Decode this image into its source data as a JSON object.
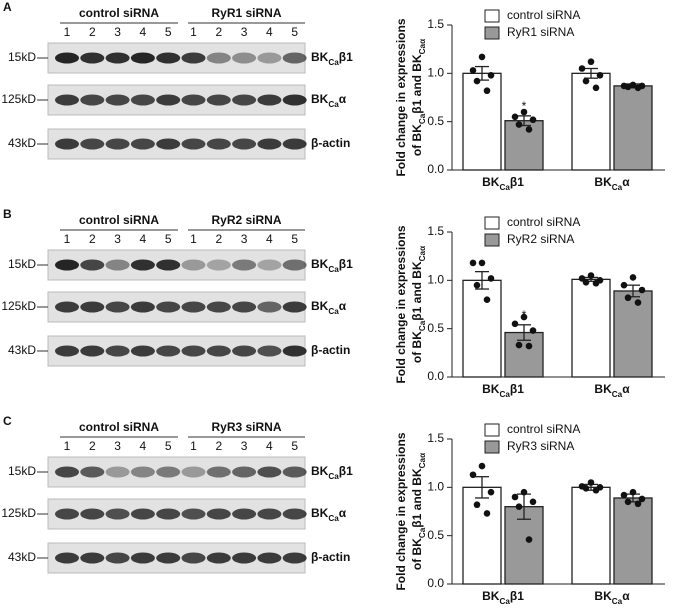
{
  "panels": [
    {
      "label": "A",
      "groups": [
        "control siRNA",
        "RyR1 siRNA"
      ],
      "lanes": [
        "1",
        "2",
        "3",
        "4",
        "5",
        "1",
        "2",
        "3",
        "4",
        "5"
      ],
      "markers": [
        "15kD",
        "125kD",
        "43kD"
      ],
      "proteins": [
        [
          {
            "text": "BK"
          },
          {
            "text": "Ca",
            "sub": true
          },
          {
            "text": "β1"
          }
        ],
        [
          {
            "text": "BK"
          },
          {
            "text": "Ca",
            "sub": true
          },
          {
            "text": "α"
          }
        ],
        [
          {
            "text": "β-actin"
          }
        ]
      ]
    },
    {
      "label": "B",
      "groups": [
        "control siRNA",
        "RyR2 siRNA"
      ],
      "lanes": [
        "1",
        "2",
        "3",
        "4",
        "5",
        "1",
        "2",
        "3",
        "4",
        "5"
      ],
      "markers": [
        "15kD",
        "125kD",
        "43kD"
      ],
      "proteins": [
        [
          {
            "text": "BK"
          },
          {
            "text": "Ca",
            "sub": true
          },
          {
            "text": "β1"
          }
        ],
        [
          {
            "text": "BK"
          },
          {
            "text": "Ca",
            "sub": true
          },
          {
            "text": "α"
          }
        ],
        [
          {
            "text": "β-actin"
          }
        ]
      ]
    },
    {
      "label": "C",
      "groups": [
        "control siRNA",
        "RyR3 siRNA"
      ],
      "lanes": [
        "1",
        "2",
        "3",
        "4",
        "5",
        "1",
        "2",
        "3",
        "4",
        "5"
      ],
      "markers": [
        "15kD",
        "125kD",
        "43kD"
      ],
      "proteins": [
        [
          {
            "text": "BK"
          },
          {
            "text": "Ca",
            "sub": true
          },
          {
            "text": "β1"
          }
        ],
        [
          {
            "text": "BK"
          },
          {
            "text": "Ca",
            "sub": true
          },
          {
            "text": "α"
          }
        ],
        [
          {
            "text": "β-actin"
          }
        ]
      ]
    }
  ],
  "chart_data": [
    {
      "type": "bar",
      "ylabel": [
        [
          {
            "text": "Fold change in expressions"
          }
        ],
        [
          {
            "text": "of BK"
          },
          {
            "text": "Ca",
            "sub": true
          },
          {
            "text": "β1 and BK"
          },
          {
            "text": "Caα",
            "sub": true
          }
        ]
      ],
      "categories": [
        [
          {
            "text": "BK"
          },
          {
            "text": "Ca",
            "sub": true
          },
          {
            "text": "β1"
          }
        ],
        [
          {
            "text": "BK"
          },
          {
            "text": "Ca",
            "sub": true
          },
          {
            "text": "α"
          }
        ]
      ],
      "series": [
        {
          "name": "control siRNA",
          "color": "#ffffff",
          "values": [
            1.0,
            1.0
          ],
          "errors": [
            0.07,
            0.05
          ],
          "points": [
            [
              1.17,
              1.03,
              0.98,
              0.92,
              0.82
            ],
            [
              1.12,
              1.05,
              0.98,
              0.92,
              0.85
            ]
          ],
          "significance": [
            null,
            null
          ]
        },
        {
          "name": "RyR1 siRNA",
          "color": "#999999",
          "values": [
            0.51,
            0.87
          ],
          "errors": [
            0.05,
            0.02
          ],
          "points": [
            [
              0.6,
              0.55,
              0.52,
              0.47,
              0.42
            ],
            [
              0.88,
              0.87,
              0.87,
              0.86,
              0.85
            ]
          ],
          "significance": [
            "*",
            null
          ]
        }
      ],
      "ylim": [
        0,
        1.5
      ],
      "yticks": [
        {
          "value": 0,
          "label": "0.0"
        },
        0.5,
        {
          "value": 1,
          "label": "1.0"
        },
        1.5
      ],
      "legend": "top-right"
    },
    {
      "type": "bar",
      "ylabel": [
        [
          {
            "text": "Fold change in expressions"
          }
        ],
        [
          {
            "text": "of BK"
          },
          {
            "text": "Ca",
            "sub": true
          },
          {
            "text": "β1 and BK"
          },
          {
            "text": "Caα",
            "sub": true
          }
        ]
      ],
      "categories": [
        [
          {
            "text": "BK"
          },
          {
            "text": "Ca",
            "sub": true
          },
          {
            "text": "β1"
          }
        ],
        [
          {
            "text": "BK"
          },
          {
            "text": "Ca",
            "sub": true
          },
          {
            "text": "α"
          }
        ]
      ],
      "series": [
        {
          "name": "control siRNA",
          "color": "#ffffff",
          "values": [
            1.0,
            1.01
          ],
          "errors": [
            0.09,
            0.02
          ],
          "points": [
            [
              1.18,
              1.18,
              1.02,
              0.95,
              0.8
            ],
            [
              1.05,
              1.02,
              1.0,
              0.98,
              0.97
            ]
          ],
          "significance": [
            null,
            null
          ]
        },
        {
          "name": "RyR2 siRNA",
          "color": "#999999",
          "values": [
            0.46,
            0.89
          ],
          "errors": [
            0.08,
            0.06
          ],
          "points": [
            [
              0.62,
              0.55,
              0.48,
              0.33,
              0.32
            ],
            [
              1.03,
              0.95,
              0.9,
              0.82,
              0.77
            ]
          ],
          "significance": [
            "*",
            null
          ]
        }
      ],
      "ylim": [
        0,
        1.5
      ],
      "yticks": [
        {
          "value": 0,
          "label": "0.0"
        },
        0.5,
        {
          "value": 1,
          "label": "1.0"
        },
        1.5
      ],
      "legend": "top-right"
    },
    {
      "type": "bar",
      "ylabel": [
        [
          {
            "text": "Fold change in expressions"
          }
        ],
        [
          {
            "text": "of BK"
          },
          {
            "text": "Ca",
            "sub": true
          },
          {
            "text": "β1 and BK"
          },
          {
            "text": "Caα",
            "sub": true
          }
        ]
      ],
      "categories": [
        [
          {
            "text": "BK"
          },
          {
            "text": "Ca",
            "sub": true
          },
          {
            "text": "β1"
          }
        ],
        [
          {
            "text": "BK"
          },
          {
            "text": "Ca",
            "sub": true
          },
          {
            "text": "α"
          }
        ]
      ],
      "series": [
        {
          "name": "control siRNA",
          "color": "#ffffff",
          "values": [
            1.0,
            1.0
          ],
          "errors": [
            0.11,
            0.03
          ],
          "points": [
            [
              1.22,
              1.13,
              0.95,
              0.82,
              0.73
            ],
            [
              1.05,
              1.01,
              1.0,
              0.99,
              0.97
            ]
          ],
          "significance": [
            null,
            null
          ]
        },
        {
          "name": "RyR3 siRNA",
          "color": "#999999",
          "values": [
            0.8,
            0.89
          ],
          "errors": [
            0.13,
            0.04
          ],
          "points": [
            [
              0.95,
              0.9,
              0.85,
              0.8,
              0.46
            ],
            [
              0.95,
              0.92,
              0.88,
              0.85,
              0.83
            ]
          ],
          "significance": [
            null,
            null
          ]
        }
      ],
      "ylim": [
        0,
        1.5
      ],
      "yticks": [
        {
          "value": 0,
          "label": "0.0"
        },
        0.5,
        {
          "value": 1,
          "label": "1.0"
        },
        1.5
      ],
      "legend": "top-right"
    }
  ]
}
